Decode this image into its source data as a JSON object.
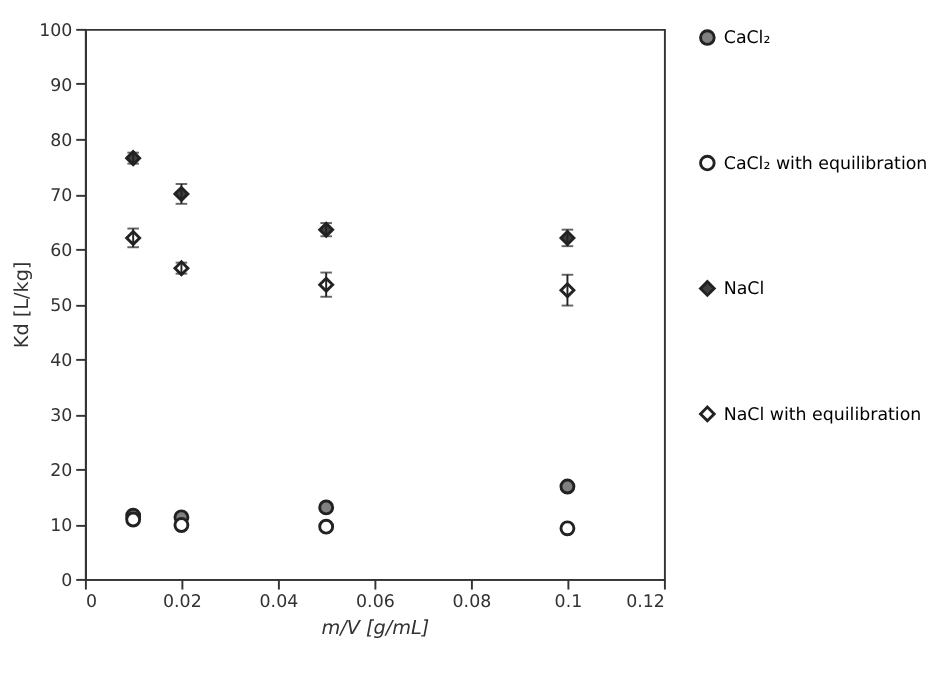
{
  "chart_data": {
    "type": "scatter",
    "xlabel": "m/V [g/mL]",
    "ylabel": "Kd [L/kg]",
    "x": [
      0.01,
      0.02,
      0.05,
      0.1
    ],
    "xlim": [
      0,
      0.12
    ],
    "xticks": [
      0,
      0.02,
      0.04,
      0.06,
      0.08,
      0.1,
      0.12
    ],
    "ylim": [
      0,
      100
    ],
    "yticks": [
      0,
      10,
      20,
      30,
      40,
      50,
      60,
      70,
      80,
      90,
      100
    ],
    "grid": false,
    "legend": "right",
    "series": [
      {
        "name": "CaCl₂",
        "color": "#808080",
        "marker": "circle",
        "values": [
          11.5,
          11.2,
          13,
          16.8
        ]
      },
      {
        "name": "CaCl₂ with equilibration",
        "color": "#ffffff",
        "marker": "circle",
        "values": [
          10.8,
          9.8,
          9.5,
          9.2
        ]
      },
      {
        "name": "NaCl",
        "color": "#404040",
        "marker": "diamond",
        "values": [
          76.5,
          70,
          63.5,
          62
        ],
        "errors": [
          1,
          1.8,
          1.2,
          1.5
        ]
      },
      {
        "name": "NaCl with equilibration",
        "color": "#ffffff",
        "marker": "diamond",
        "values": [
          62,
          56.5,
          53.5,
          52.5
        ],
        "errors": [
          1.7,
          1,
          2.2,
          2.8
        ]
      }
    ]
  }
}
